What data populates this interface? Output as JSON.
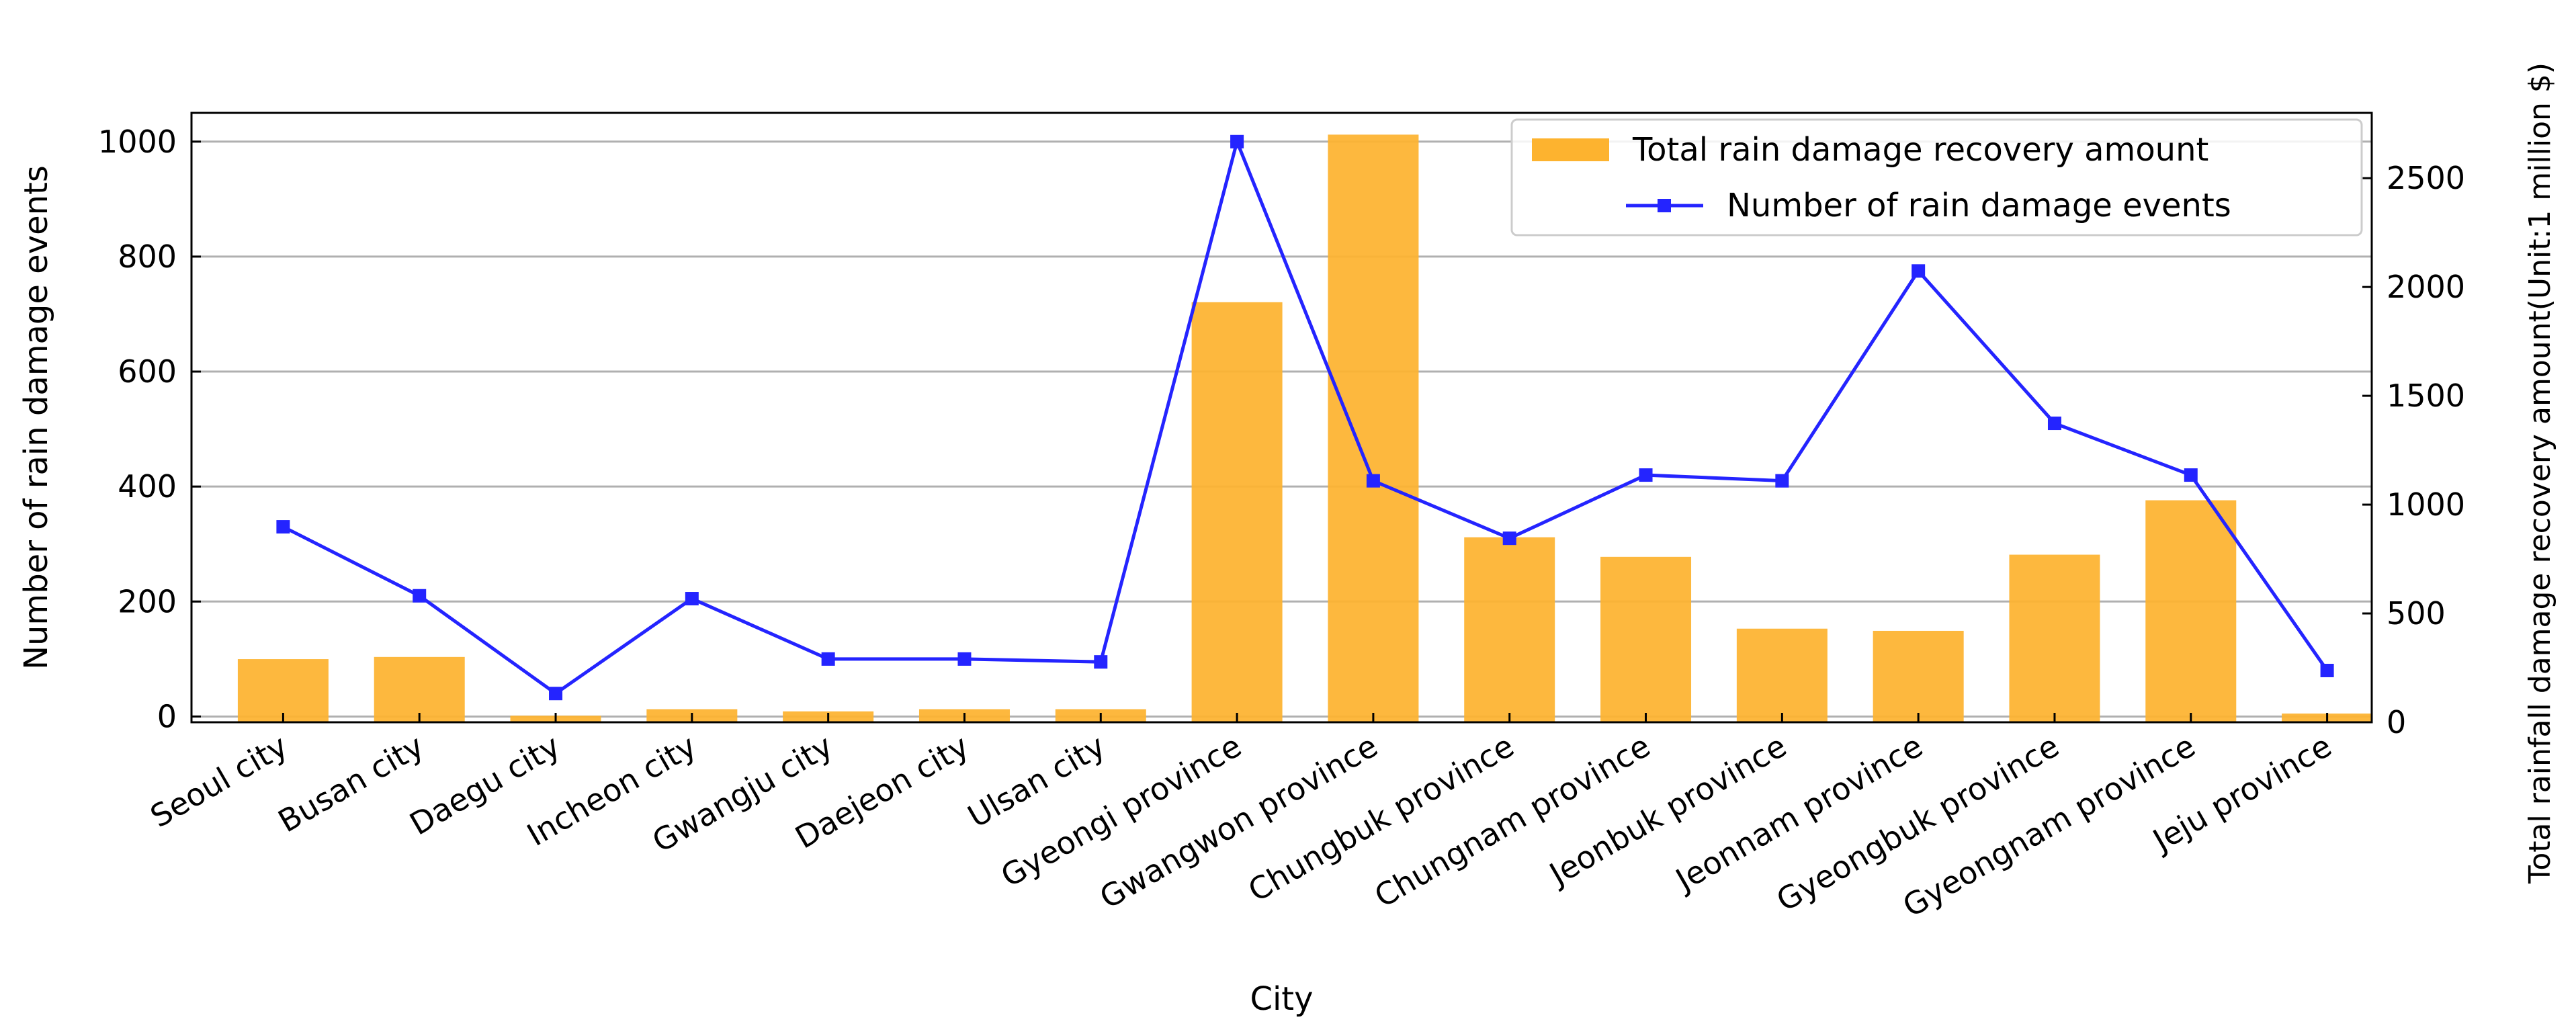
{
  "chart_data": {
    "type": "bar+line",
    "title": "",
    "xlabel": "City",
    "ylabel_left": "Number of rain damage events",
    "ylabel_right": "Total rainfall damage recovery amount(Unit:1 million $)",
    "categories": [
      "Seoul city",
      "Busan city",
      "Daegu city",
      "Incheon city",
      "Gwangju city",
      "Daejeon city",
      "Ulsan city",
      "Gyeongi province",
      "Gwangwon province",
      "Chungbuk province",
      "Chungnam province",
      "Jeonbuk province",
      "Jeonnam province",
      "Gyeongbuk province",
      "Gyeongnam province",
      "Jeju province"
    ],
    "series": [
      {
        "name": "Total rain damage recovery amount",
        "type": "bar",
        "axis": "right",
        "color": "#fdb32f",
        "values": [
          290,
          300,
          30,
          60,
          50,
          60,
          60,
          1930,
          2700,
          850,
          760,
          430,
          420,
          770,
          1020,
          40
        ]
      },
      {
        "name": "Number of rain damage events",
        "type": "line",
        "axis": "left",
        "color": "#2424ff",
        "marker": "square",
        "values": [
          330,
          210,
          40,
          205,
          100,
          100,
          95,
          1000,
          410,
          310,
          420,
          410,
          775,
          510,
          420,
          80
        ]
      }
    ],
    "ylim_left": [
      -10,
      1050
    ],
    "ylim_right": [
      0,
      2800
    ],
    "yticks_left": [
      0,
      200,
      400,
      600,
      800,
      1000
    ],
    "yticks_right": [
      0,
      500,
      1000,
      1500,
      2000,
      2500
    ],
    "grid": "horizontal",
    "legend_position": "top-right"
  }
}
